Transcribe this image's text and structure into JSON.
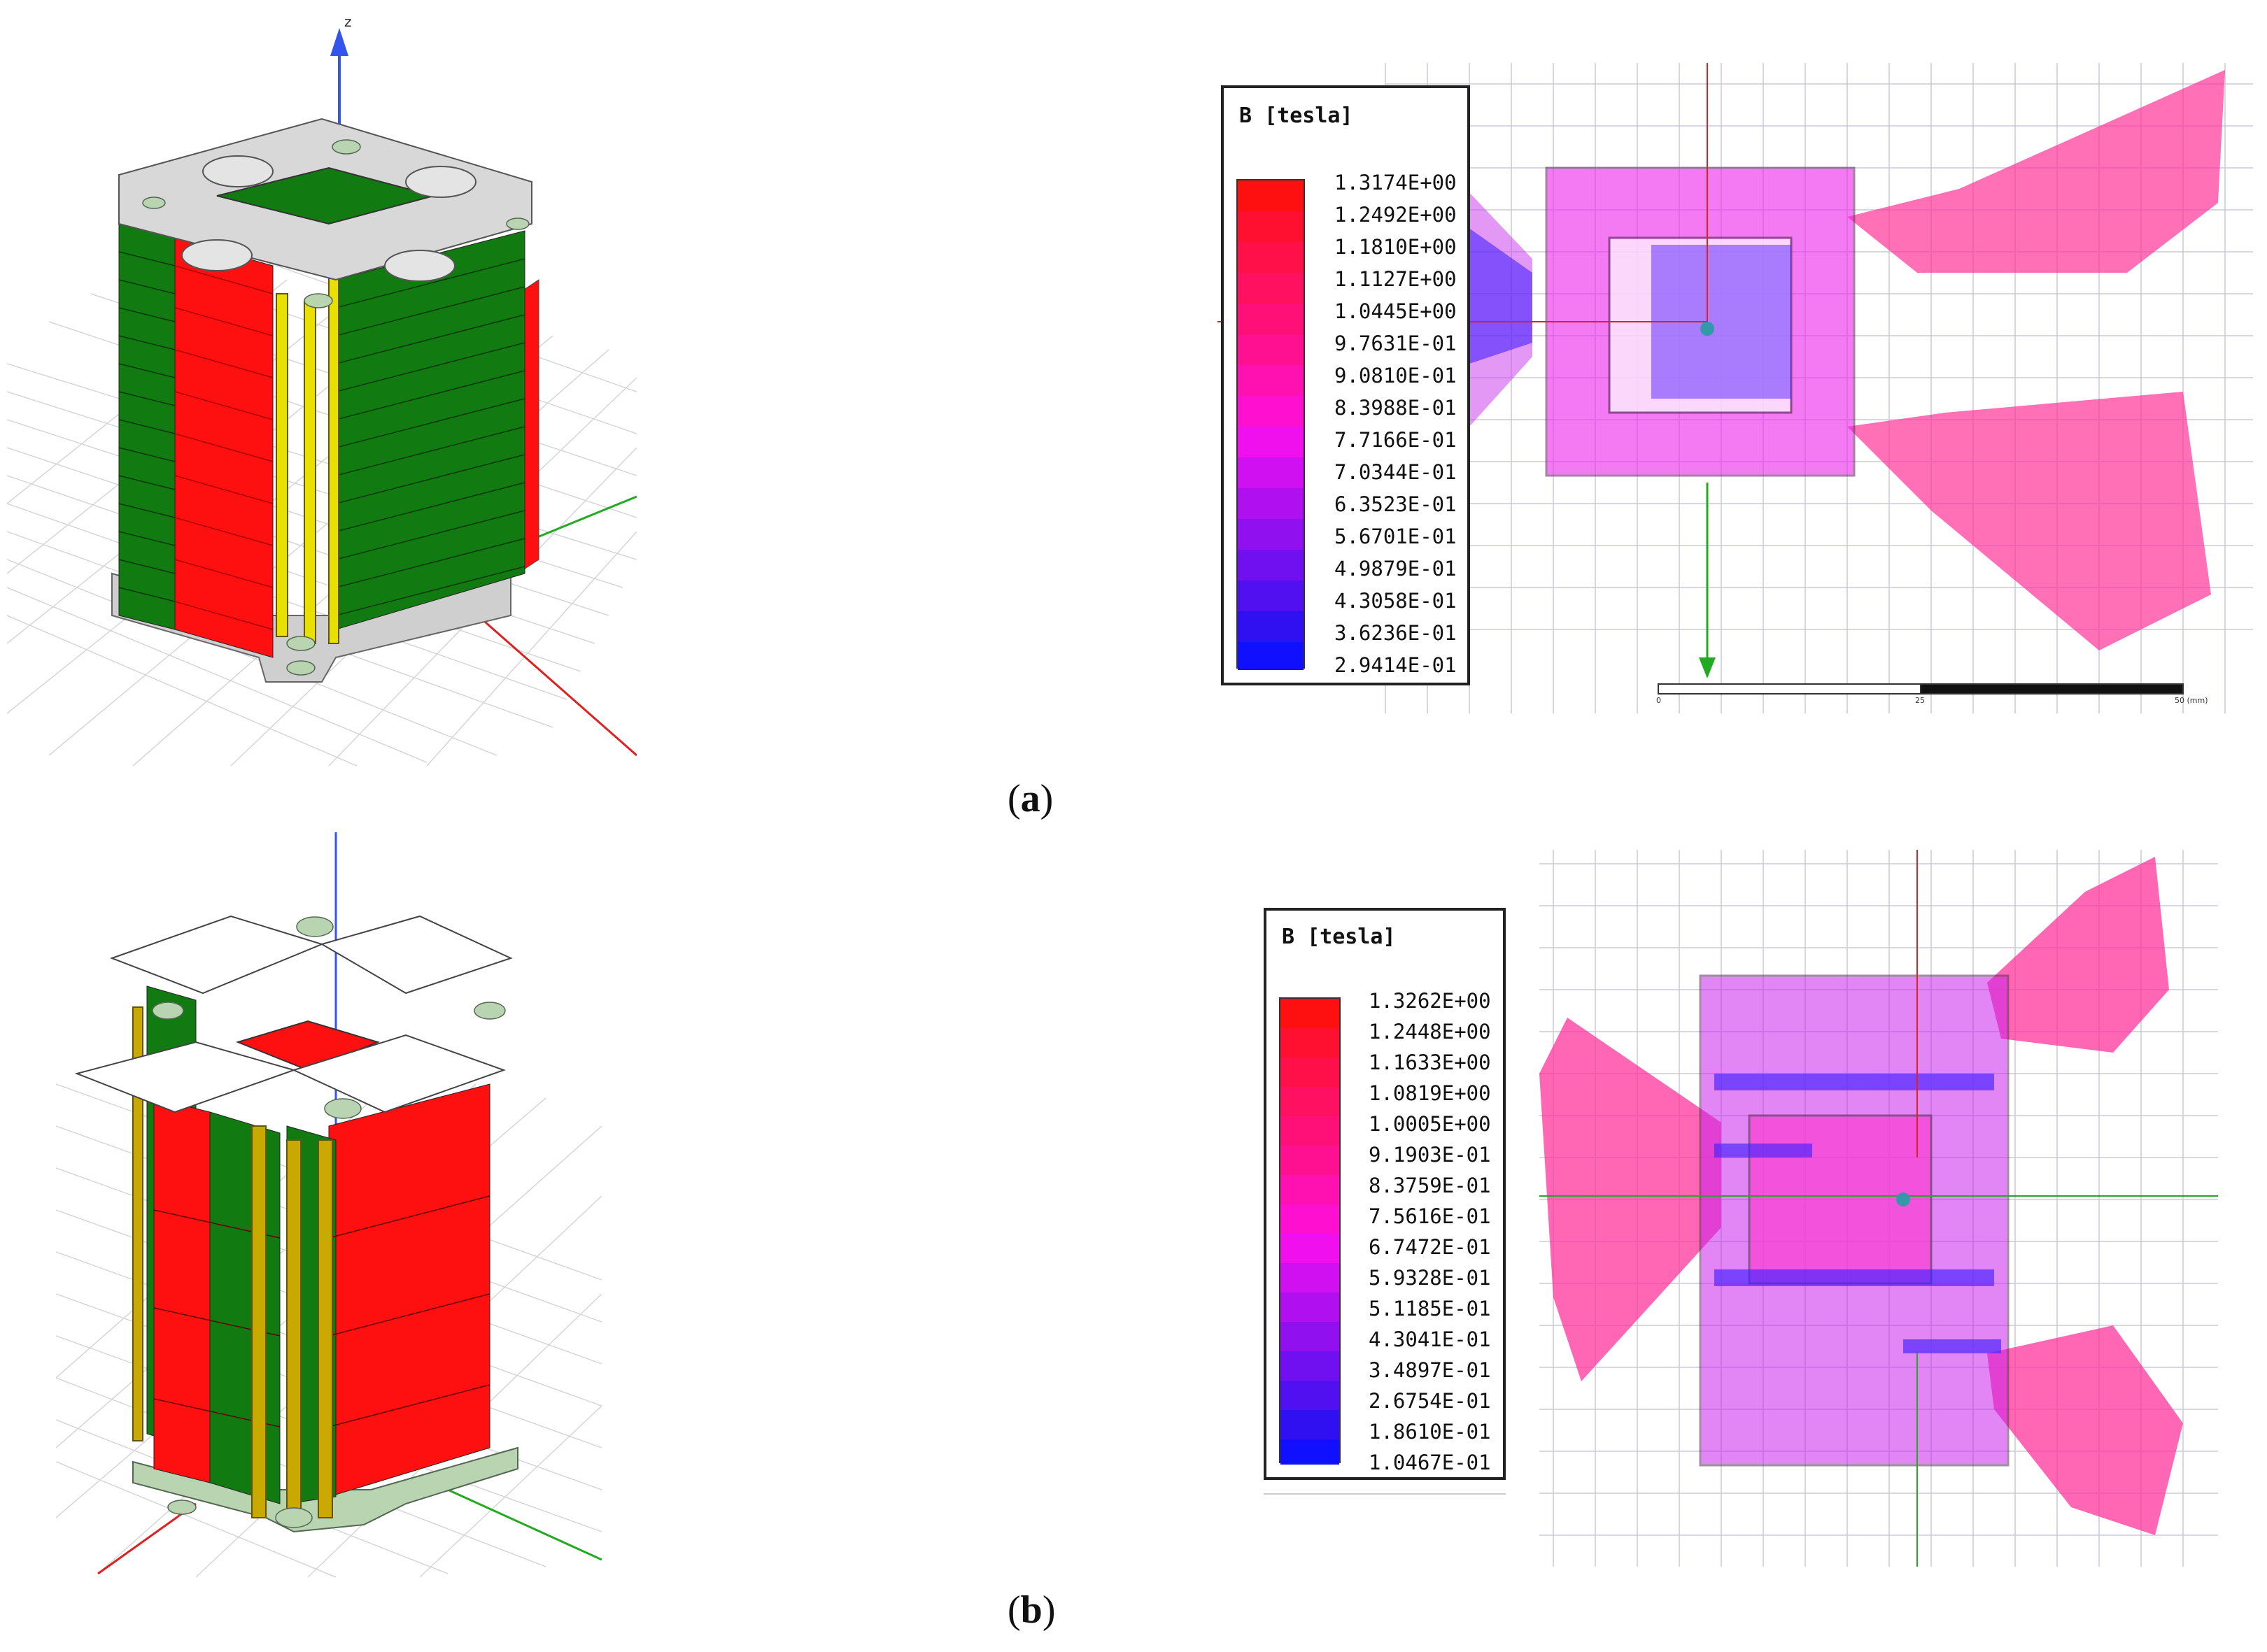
{
  "captions": {
    "a": {
      "open": "(",
      "letter": "a",
      "close": ")"
    },
    "b": {
      "open": "(",
      "letter": "b",
      "close": ")"
    }
  },
  "axis_label_z": "z",
  "panel_a": {
    "legend": {
      "title": "B [tesla]",
      "values": [
        "1.3174E+00",
        "1.2492E+00",
        "1.1810E+00",
        "1.1127E+00",
        "1.0445E+00",
        "9.7631E-01",
        "9.0810E-01",
        "8.3988E-01",
        "7.7166E-01",
        "7.0344E-01",
        "6.3523E-01",
        "5.6701E-01",
        "4.9879E-01",
        "4.3058E-01",
        "3.6236E-01",
        "2.9414E-01"
      ]
    },
    "scale_bar": {
      "labels": [
        "0",
        "25",
        "50 (mm)"
      ]
    }
  },
  "panel_b": {
    "legend": {
      "title": "B [tesla]",
      "values": [
        "1.3262E+00",
        "1.2448E+00",
        "1.1633E+00",
        "1.0819E+00",
        "1.0005E+00",
        "9.1903E-01",
        "8.3759E-01",
        "7.5616E-01",
        "6.7472E-01",
        "5.9328E-01",
        "5.1185E-01",
        "4.3041E-01",
        "3.4897E-01",
        "2.6754E-01",
        "1.8610E-01",
        "1.0467E-01"
      ]
    }
  },
  "colors": {
    "coil_green": "#117a11",
    "coil_red": "#ff1010",
    "rod_yellow": "#e8e000",
    "rod_olive": "#c9a800",
    "plate_gray": "#d8d8d8",
    "spacer": "#b8d4b0",
    "axis_blue": "#3355ee",
    "axis_green": "#22aa22",
    "axis_red": "#dd2222",
    "field_magenta": "#ff22cc",
    "field_blue": "#4422ff",
    "field_pink": "#ff3399"
  }
}
